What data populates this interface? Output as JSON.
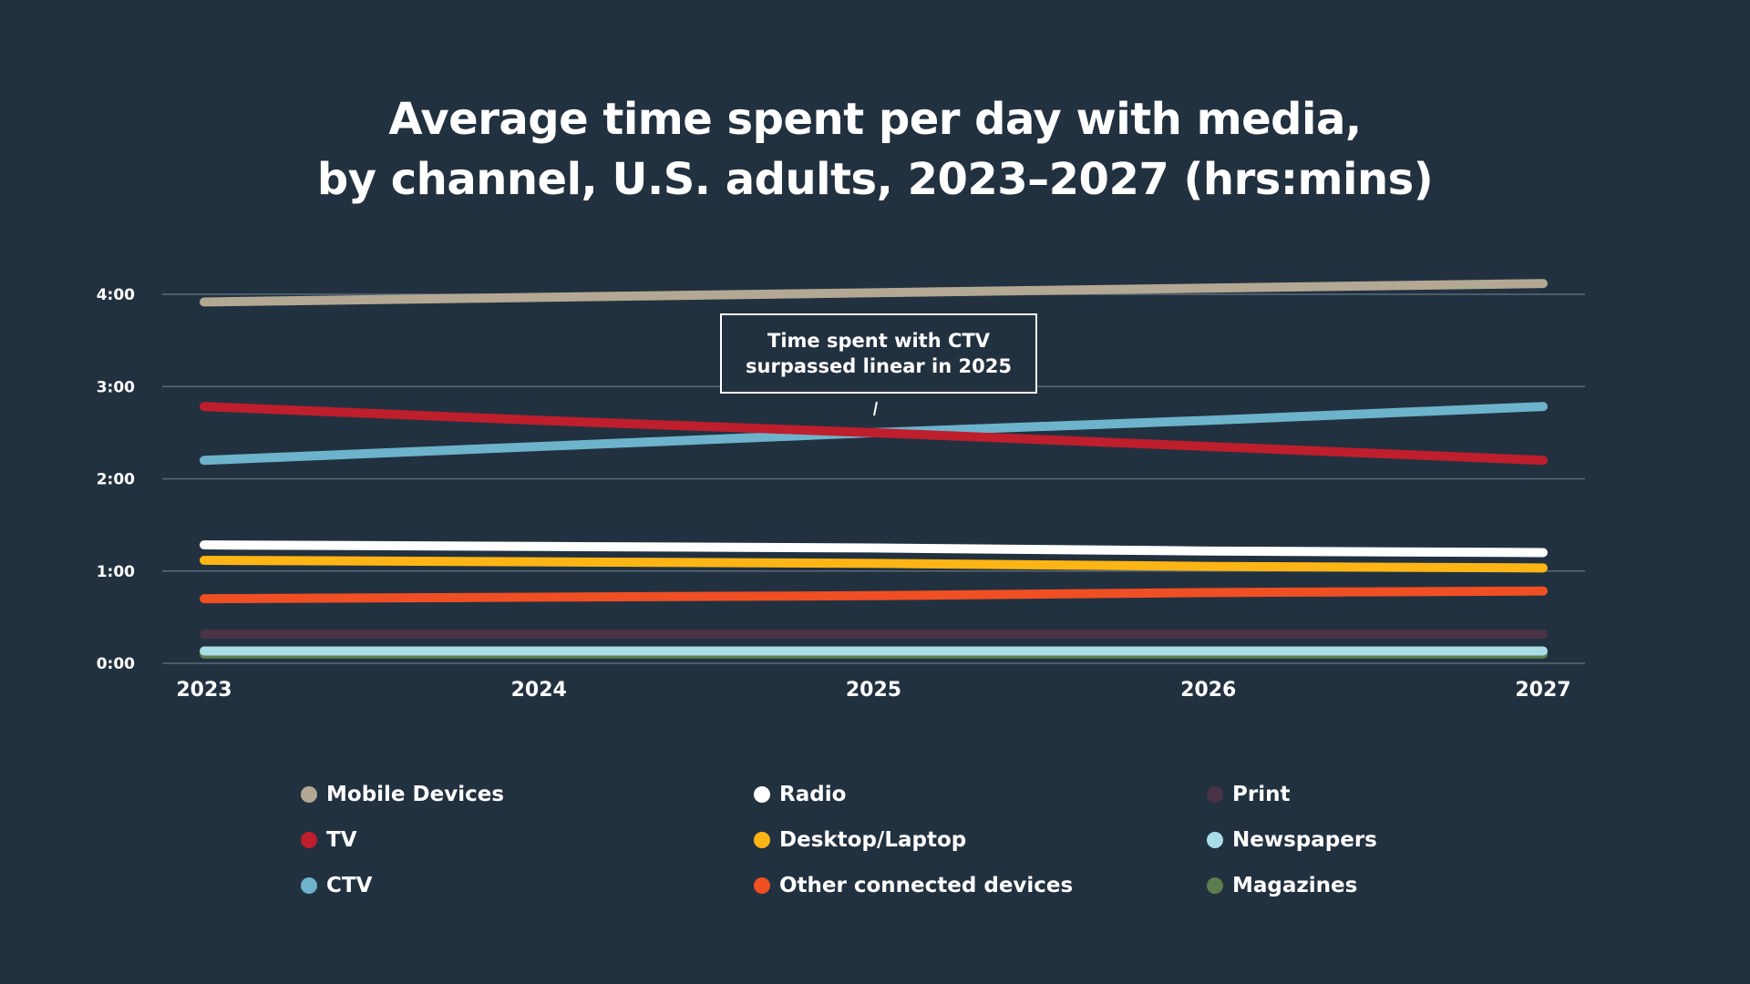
{
  "chart_data": {
    "type": "line",
    "title_lines": [
      "Average time spent per day with media,",
      "by channel, U.S. adults, 2023–2027 (hrs:mins)"
    ],
    "x": [
      "2023",
      "2024",
      "2025",
      "2026",
      "2027"
    ],
    "y_ticks": [
      "0:00",
      "1:00",
      "2:00",
      "3:00",
      "4:00"
    ],
    "ylim": [
      "0:00",
      "4:00"
    ],
    "grid": "horizontal",
    "legend_placement": "bottom",
    "series": [
      {
        "name": "Mobile Devices",
        "color": "#b3a893",
        "values": [
          "3:55",
          "3:58",
          "4:01",
          "4:04",
          "4:07"
        ]
      },
      {
        "name": "TV",
        "color": "#bf1e2d",
        "values": [
          "2:47",
          "2:38",
          "2:30",
          "2:21",
          "2:12"
        ]
      },
      {
        "name": "CTV",
        "color": "#6db3cc",
        "values": [
          "2:12",
          "2:21",
          "2:30",
          "2:38",
          "2:47"
        ]
      },
      {
        "name": "Radio",
        "color": "#ffffff",
        "values": [
          "1:17",
          "1:16",
          "1:15",
          "1:13",
          "1:12"
        ]
      },
      {
        "name": "Desktop/Laptop",
        "color": "#fdb515",
        "values": [
          "1:07",
          "1:06",
          "1:05",
          "1:03",
          "1:02"
        ]
      },
      {
        "name": "Other connected devices",
        "color": "#f04e23",
        "values": [
          "0:42",
          "0:43",
          "0:44",
          "0:46",
          "0:47"
        ]
      },
      {
        "name": "Print",
        "color": "#4a3346",
        "values": [
          "0:19",
          "0:19",
          "0:19",
          "0:19",
          "0:19"
        ]
      },
      {
        "name": "Newspapers",
        "color": "#a9dde8",
        "values": [
          "0:08",
          "0:08",
          "0:08",
          "0:08",
          "0:08"
        ]
      },
      {
        "name": "Magazines",
        "color": "#5c7d4e",
        "values": [
          "0:06",
          "0:06",
          "0:06",
          "0:06",
          "0:06"
        ]
      }
    ],
    "annotation": {
      "lines": [
        "Time spent with CTV",
        "surpassed linear in 2025"
      ]
    }
  },
  "legend_order": [
    0,
    3,
    6,
    1,
    4,
    7,
    2,
    5,
    8
  ]
}
